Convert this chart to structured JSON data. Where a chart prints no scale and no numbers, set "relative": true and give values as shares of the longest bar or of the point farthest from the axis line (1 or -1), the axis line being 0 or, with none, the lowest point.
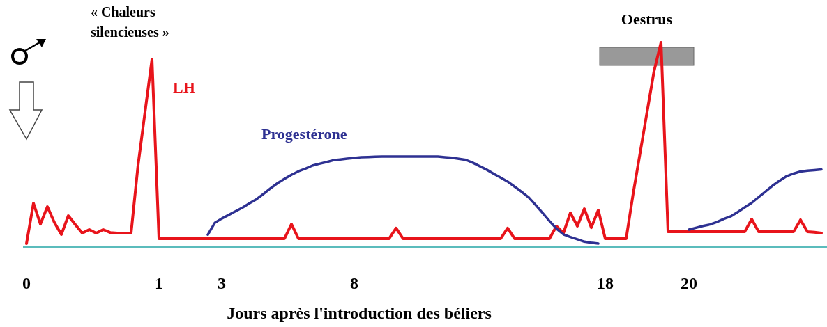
{
  "chart_data": {
    "type": "line",
    "relative": true,
    "xlabel": "Jours après l'introduction des béliers",
    "categories": [
      "0",
      null,
      null,
      null,
      null,
      null,
      null,
      null,
      null,
      null,
      null,
      null,
      null,
      null,
      null,
      null,
      null,
      null,
      null,
      "1",
      null,
      null,
      null,
      null,
      null,
      null,
      null,
      null,
      "3",
      null,
      null,
      null,
      null,
      null,
      null,
      null,
      null,
      null,
      null,
      null,
      null,
      null,
      null,
      null,
      null,
      null,
      null,
      "8",
      null,
      null,
      null,
      null,
      null,
      null,
      null,
      null,
      null,
      null,
      null,
      null,
      null,
      null,
      null,
      null,
      null,
      null,
      null,
      null,
      null,
      null,
      null,
      null,
      null,
      null,
      null,
      null,
      null,
      null,
      null,
      null,
      null,
      null,
      null,
      "18",
      null,
      null,
      null,
      null,
      null,
      null,
      null,
      null,
      null,
      null,
      null,
      "20",
      null,
      null,
      null,
      null,
      null,
      null,
      null,
      null,
      null,
      null,
      null,
      null,
      null,
      null,
      null,
      null,
      null,
      null,
      null
    ],
    "series": [
      {
        "name": "LH",
        "color": "#e8141b",
        "values": [
          0.017,
          0.214,
          0.112,
          0.197,
          0.12,
          0.061,
          0.153,
          0.11,
          0.068,
          0.085,
          0.068,
          0.085,
          0.071,
          0.068,
          0.068,
          0.068,
          0.4,
          0.66,
          0.918,
          0.041,
          0.041,
          0.041,
          0.041,
          0.041,
          0.041,
          0.041,
          0.041,
          0.041,
          0.041,
          0.041,
          0.041,
          0.041,
          0.041,
          0.041,
          0.041,
          0.041,
          0.041,
          0.041,
          0.112,
          0.041,
          0.041,
          0.041,
          0.041,
          0.041,
          0.041,
          0.041,
          0.041,
          0.041,
          0.041,
          0.041,
          0.041,
          0.041,
          0.041,
          0.092,
          0.041,
          0.041,
          0.041,
          0.041,
          0.041,
          0.041,
          0.041,
          0.041,
          0.041,
          0.041,
          0.041,
          0.041,
          0.041,
          0.041,
          0.041,
          0.092,
          0.041,
          0.041,
          0.041,
          0.041,
          0.041,
          0.041,
          0.102,
          0.068,
          0.167,
          0.102,
          0.187,
          0.095,
          0.18,
          0.041,
          0.041,
          0.041,
          0.041,
          0.26,
          0.46,
          0.66,
          0.86,
          1,
          0.075,
          0.075,
          0.075,
          0.075,
          0.075,
          0.075,
          0.075,
          0.075,
          0.075,
          0.075,
          0.075,
          0.075,
          0.136,
          0.075,
          0.075,
          0.075,
          0.075,
          0.075,
          0.075,
          0.133,
          0.075,
          0.072,
          0.068
        ]
      },
      {
        "name": "Progestérone",
        "color": "#2e3192",
        "values": [
          null,
          null,
          null,
          null,
          null,
          null,
          null,
          null,
          null,
          null,
          null,
          null,
          null,
          null,
          null,
          null,
          null,
          null,
          null,
          null,
          null,
          null,
          null,
          null,
          null,
          null,
          0.06,
          0.118,
          0.139,
          0.157,
          0.175,
          0.193,
          0.214,
          0.234,
          0.26,
          0.287,
          0.312,
          0.333,
          0.353,
          0.37,
          0.383,
          0.398,
          0.407,
          0.415,
          0.424,
          0.428,
          0.432,
          0.435,
          0.439,
          0.44,
          0.441,
          0.442,
          0.442,
          0.442,
          0.442,
          0.442,
          0.442,
          0.442,
          0.442,
          0.442,
          0.439,
          0.436,
          0.431,
          0.426,
          0.412,
          0.395,
          0.378,
          0.358,
          0.339,
          0.32,
          0.295,
          0.27,
          0.243,
          0.206,
          0.167,
          0.127,
          0.09,
          0.062,
          0.049,
          0.038,
          0.026,
          0.021,
          0.017,
          null,
          null,
          null,
          null,
          null,
          null,
          null,
          null,
          null,
          null,
          null,
          null,
          0.085,
          0.094,
          0.103,
          0.11,
          0.122,
          0.137,
          0.15,
          0.171,
          0.194,
          0.216,
          0.244,
          0.272,
          0.3,
          0.324,
          0.346,
          0.359,
          0.369,
          0.373,
          0.376,
          0.379
        ]
      }
    ],
    "bands": [
      {
        "axis": "x",
        "from": "18",
        "to": "20",
        "label": "Oestrus",
        "color": "#999999"
      }
    ],
    "annotations": [
      "« Chaleurs\nsilencieuses »"
    ],
    "grid": false,
    "legend": false,
    "marker": "none",
    "line_style": "solid"
  }
}
